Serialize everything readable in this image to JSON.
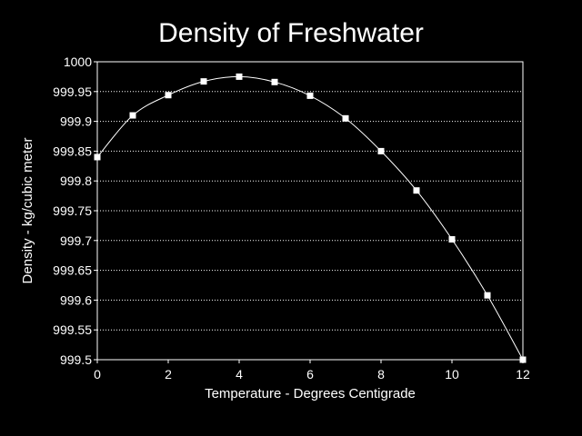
{
  "chart_data": {
    "type": "line",
    "title": "Density of Freshwater",
    "xlabel": "Temperature - Degrees Centigrade",
    "ylabel": "Density - kg/cubic meter",
    "x": [
      0,
      1,
      2,
      3,
      4,
      5,
      6,
      7,
      8,
      9,
      10,
      11,
      12
    ],
    "series": [
      {
        "values": [
          999.84,
          999.91,
          999.944,
          999.967,
          999.975,
          999.966,
          999.943,
          999.905,
          999.85,
          999.784,
          999.702,
          999.608,
          999.5
        ]
      }
    ],
    "xlim": [
      0,
      12
    ],
    "ylim": [
      999.5,
      1000
    ],
    "xticks": [
      "0",
      "2",
      "4",
      "6",
      "8",
      "10",
      "12"
    ],
    "yticks": [
      "999.5",
      "999.55",
      "999.6",
      "999.65",
      "999.7",
      "999.75",
      "999.8",
      "999.85",
      "999.9",
      "999.95",
      "1000"
    ],
    "grid": "horizontal dotted",
    "legend": "none",
    "marker": "square",
    "colors": {
      "background": "#000000",
      "plot_background": "#000000",
      "foreground": "#ffffff",
      "line": "#ffffff",
      "marker": "#ffffff",
      "grid": "#ffffff"
    }
  }
}
